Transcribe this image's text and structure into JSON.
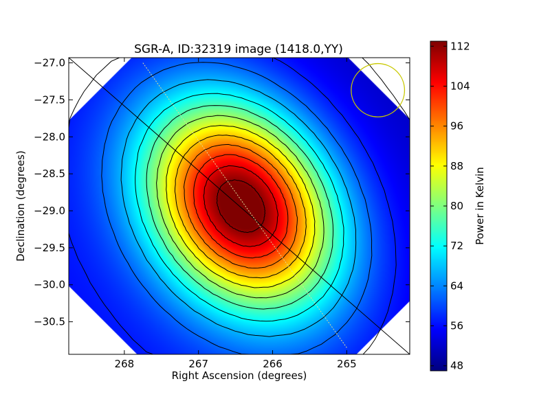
{
  "chart_data": {
    "type": "heatmap",
    "title": "SGR-A, ID:32319 image (1418.0,YY)",
    "xlabel": "Right Ascension (degrees)",
    "ylabel": "Declination (degrees)",
    "xlim": [
      268.75,
      264.15
    ],
    "ylim": [
      -30.94,
      -26.93
    ],
    "x_ticks": [
      268,
      267,
      266,
      265
    ],
    "x_tick_labels": [
      "268",
      "267",
      "266",
      "265"
    ],
    "y_ticks": [
      -27.0,
      -27.5,
      -28.0,
      -28.5,
      -29.0,
      -29.5,
      -30.0,
      -30.5
    ],
    "y_tick_labels": [
      "−27.0",
      "−27.5",
      "−28.0",
      "−28.5",
      "−29.0",
      "−29.5",
      "−30.0",
      "−30.5"
    ],
    "peak": {
      "ra": 266.42,
      "dec": -28.93,
      "value": 113
    },
    "min_value": 47,
    "contour_levels": [
      52,
      57,
      62,
      67,
      72,
      77,
      82,
      87,
      92,
      97,
      102,
      107,
      112
    ],
    "galactic_plane": {
      "from": [
        267.75,
        -27.0
      ],
      "to": [
        265.0,
        -30.85
      ]
    },
    "beam_circle": {
      "ra": 264.58,
      "dec": -27.37,
      "radius_deg": 0.36
    },
    "colorbar": {
      "label": "Power in Kelvin",
      "range": [
        47,
        113
      ],
      "ticks": [
        48,
        56,
        64,
        72,
        80,
        88,
        96,
        104,
        112
      ],
      "tick_labels": [
        "48",
        "56",
        "64",
        "72",
        "80",
        "88",
        "96",
        "104",
        "112"
      ],
      "colormap": "jet"
    }
  },
  "colors": {
    "galactic_plane": "#dddd99",
    "beam_circle": "#c8c800",
    "contour": "#000000"
  }
}
